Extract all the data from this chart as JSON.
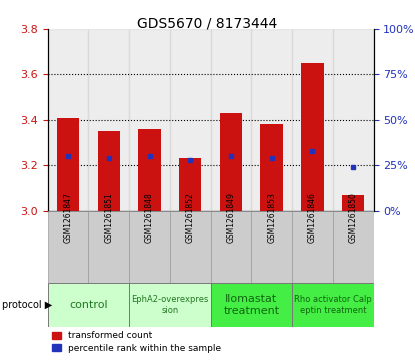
{
  "title": "GDS5670 / 8173444",
  "samples": [
    "GSM1261847",
    "GSM1261851",
    "GSM1261848",
    "GSM1261852",
    "GSM1261849",
    "GSM1261853",
    "GSM1261846",
    "GSM1261850"
  ],
  "transformed_counts": [
    3.41,
    3.35,
    3.36,
    3.23,
    3.43,
    3.38,
    3.65,
    3.07
  ],
  "percentile_ranks": [
    30,
    29,
    30,
    28,
    30,
    29,
    33,
    24
  ],
  "ylim_left": [
    3.0,
    3.8
  ],
  "ylim_right": [
    0,
    100
  ],
  "yticks_left": [
    3.0,
    3.2,
    3.4,
    3.6,
    3.8
  ],
  "yticks_right": [
    0,
    25,
    50,
    75,
    100
  ],
  "bar_color": "#CC1111",
  "dot_color": "#2233BB",
  "left_tick_color": "#CC1111",
  "right_tick_color": "#2233BB",
  "grid_dotted_lines": [
    3.2,
    3.4,
    3.6
  ],
  "col_bg_color": "#CCCCCC",
  "protocol_groups": [
    {
      "label": "control",
      "cols": [
        0,
        1
      ],
      "color": "#CCFFCC",
      "text_color": "#227722",
      "fontsize": 8
    },
    {
      "label": "EphA2-overexpres\nsion",
      "cols": [
        2,
        3
      ],
      "color": "#CCFFCC",
      "text_color": "#227722",
      "fontsize": 6
    },
    {
      "label": "Ilomastat\ntreatment",
      "cols": [
        4,
        5
      ],
      "color": "#44EE44",
      "text_color": "#116611",
      "fontsize": 8
    },
    {
      "label": "Rho activator Calp\neptin treatment",
      "cols": [
        6,
        7
      ],
      "color": "#44EE44",
      "text_color": "#116611",
      "fontsize": 6
    }
  ]
}
